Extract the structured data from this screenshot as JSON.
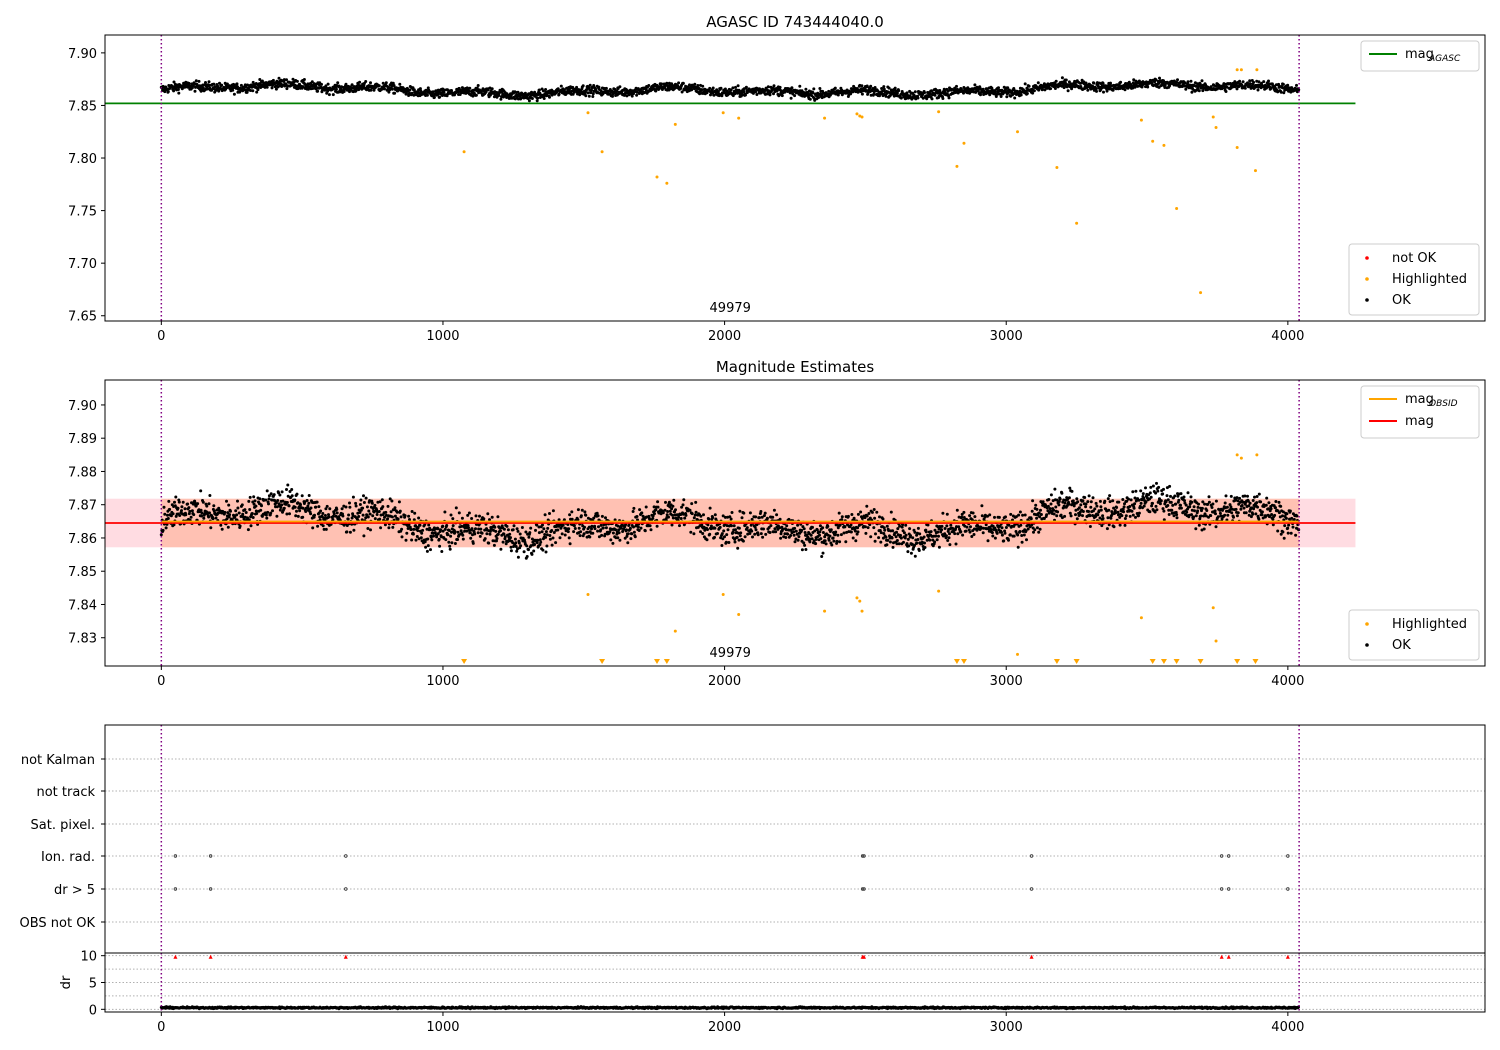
{
  "chart_data": [
    {
      "type": "scatter",
      "title": "AGASC ID 743444040.0",
      "xlabel": "",
      "ylabel": "",
      "xlim": [
        -200,
        4700
      ],
      "ylim": [
        7.645,
        7.917
      ],
      "xticks": [
        0,
        1000,
        2000,
        3000,
        4000
      ],
      "xtick_labels": [
        "0",
        "1000",
        "2000",
        "3000",
        "4000"
      ],
      "yticks": [
        7.65,
        7.7,
        7.75,
        7.8,
        7.85,
        7.9
      ],
      "ytick_labels": [
        "7.65",
        "7.70",
        "7.75",
        "7.80",
        "7.85",
        "7.90"
      ],
      "obsid_label": "49979",
      "obsid_label_x": 2020,
      "obs_boundaries": [
        0,
        4040
      ],
      "hline": {
        "y": 7.852,
        "x": [
          -200,
          4240
        ],
        "color": "#008000"
      },
      "legend_lines": [
        {
          "label": "mag",
          "subscript": "AGASC",
          "color": "#008000"
        }
      ],
      "legend_points": [
        {
          "label": "not OK",
          "color": "#ff0000"
        },
        {
          "label": "Highlighted",
          "color": "#ffa500"
        },
        {
          "label": "OK",
          "color": "#000000"
        }
      ],
      "legend_placement": [
        "top-right",
        "bottom-right"
      ],
      "series": [
        {
          "name": "OK",
          "color": "#000000",
          "x_range": [
            0,
            4040
          ],
          "count": 2600,
          "baseline": 7.865,
          "scatter": 0.0045
        },
        {
          "name": "Highlighted",
          "color": "#ffa500",
          "points": [
            [
              1075,
              7.806
            ],
            [
              1515,
              7.843
            ],
            [
              1565,
              7.806
            ],
            [
              1760,
              7.782
            ],
            [
              1795,
              7.776
            ],
            [
              1825,
              7.832
            ],
            [
              1995,
              7.843
            ],
            [
              2050,
              7.838
            ],
            [
              2355,
              7.838
            ],
            [
              2470,
              7.842
            ],
            [
              2480,
              7.84
            ],
            [
              2488,
              7.839
            ],
            [
              2760,
              7.844
            ],
            [
              2825,
              7.792
            ],
            [
              2850,
              7.814
            ],
            [
              3040,
              7.825
            ],
            [
              3180,
              7.791
            ],
            [
              3250,
              7.738
            ],
            [
              3480,
              7.836
            ],
            [
              3520,
              7.816
            ],
            [
              3560,
              7.812
            ],
            [
              3605,
              7.752
            ],
            [
              3690,
              7.672
            ],
            [
              3735,
              7.839
            ],
            [
              3745,
              7.829
            ],
            [
              3820,
              7.81
            ],
            [
              3820,
              7.884
            ],
            [
              3835,
              7.884
            ],
            [
              3885,
              7.788
            ],
            [
              3890,
              7.884
            ]
          ]
        },
        {
          "name": "not OK",
          "color": "#ff0000",
          "points": []
        }
      ]
    },
    {
      "type": "scatter",
      "title": "Magnitude Estimates",
      "xlabel": "",
      "ylabel": "",
      "xlim": [
        -200,
        4700
      ],
      "ylim": [
        7.8215,
        7.9075
      ],
      "xticks": [
        0,
        1000,
        2000,
        3000,
        4000
      ],
      "xtick_labels": [
        "0",
        "1000",
        "2000",
        "3000",
        "4000"
      ],
      "yticks": [
        7.83,
        7.84,
        7.85,
        7.86,
        7.87,
        7.88,
        7.89,
        7.9
      ],
      "ytick_labels": [
        "7.83",
        "7.84",
        "7.85",
        "7.86",
        "7.87",
        "7.88",
        "7.89",
        "7.90"
      ],
      "obsid_label": "49979",
      "obsid_label_x": 2020,
      "obs_boundaries": [
        0,
        4040
      ],
      "mag_line": {
        "y": 7.8645,
        "x": [
          -200,
          4240
        ],
        "color": "#ff0000"
      },
      "mag_obsid_line": {
        "y": 7.8645,
        "x": [
          0,
          4040
        ],
        "color": "#ffa500"
      },
      "band_mag": {
        "y": [
          7.8572,
          7.8718
        ],
        "x": [
          -200,
          4240
        ],
        "color": "#ffc0cb"
      },
      "band_obsid": {
        "y": [
          7.8572,
          7.8718
        ],
        "x": [
          0,
          4040
        ],
        "color": "#ffa07a"
      },
      "legend_lines": [
        {
          "label": "mag",
          "subscript": "OBSID",
          "color": "#ffa500"
        },
        {
          "label": "mag",
          "subscript": "",
          "color": "#ff0000"
        }
      ],
      "legend_points": [
        {
          "label": "Highlighted",
          "color": "#ffa500"
        },
        {
          "label": "OK",
          "color": "#000000"
        }
      ],
      "legend_placement": [
        "top-right",
        "bottom-right"
      ],
      "offscale_markers_x": [
        1075,
        1565,
        1760,
        1795,
        2825,
        2850,
        3180,
        3250,
        3520,
        3560,
        3605,
        3690,
        3820,
        3885
      ],
      "series": [
        {
          "name": "OK",
          "color": "#000000",
          "x_range": [
            0,
            4040
          ],
          "count": 2600,
          "baseline": 7.865,
          "scatter": 0.0045
        },
        {
          "name": "Highlighted",
          "color": "#ffa500",
          "points": [
            [
              1515,
              7.843
            ],
            [
              1995,
              7.843
            ],
            [
              2050,
              7.837
            ],
            [
              2355,
              7.838
            ],
            [
              2470,
              7.842
            ],
            [
              2480,
              7.841
            ],
            [
              2488,
              7.838
            ],
            [
              2760,
              7.844
            ],
            [
              3040,
              7.825
            ],
            [
              3480,
              7.836
            ],
            [
              3735,
              7.839
            ],
            [
              3745,
              7.829
            ],
            [
              3820,
              7.885
            ],
            [
              3835,
              7.884
            ],
            [
              3890,
              7.885
            ],
            [
              1825,
              7.832
            ]
          ]
        }
      ]
    },
    {
      "type": "scatter",
      "title": "",
      "xlabel": "",
      "ylabel": "",
      "xlim": [
        -200,
        4700
      ],
      "obs_boundaries": [
        0,
        4040
      ],
      "flag_rows": [
        "not Kalman",
        "not track",
        "Sat. pixel.",
        "Ion. rad.",
        "dr > 5",
        "OBS not OK"
      ],
      "flag_points": {
        "Ion. rad.": [
          50,
          175,
          655,
          2490,
          2495,
          3090,
          3765,
          3790,
          4000
        ],
        "dr > 5": [
          50,
          175,
          655,
          2490,
          2495,
          3090,
          3765,
          3790,
          4000
        ]
      },
      "series": []
    },
    {
      "type": "scatter",
      "title": "",
      "xlabel": "",
      "ylabel": "dr",
      "xlim": [
        -200,
        4700
      ],
      "ylim": [
        -0.5,
        10.5
      ],
      "yticks": [
        0,
        5,
        10
      ],
      "ytick_labels": [
        "0",
        "5",
        "10"
      ],
      "xticks": [
        0,
        1000,
        2000,
        3000,
        4000
      ],
      "xtick_labels": [
        "0",
        "1000",
        "2000",
        "3000",
        "4000"
      ],
      "obs_boundaries": [
        0,
        4040
      ],
      "clipped_markers_x": [
        50,
        175,
        655,
        2490,
        2495,
        3090,
        3765,
        3790,
        4000
      ],
      "series": [
        {
          "name": "dr",
          "color": "#000000",
          "x_range": [
            0,
            4040
          ],
          "count": 1800,
          "baseline": 0.3,
          "scatter": 0.15
        }
      ]
    }
  ]
}
